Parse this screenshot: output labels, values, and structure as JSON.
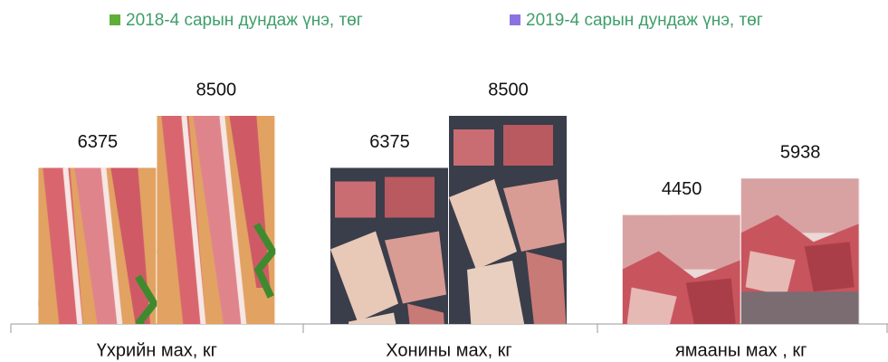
{
  "chart_data": {
    "type": "bar",
    "categories": [
      "Үхрийн мах, кг",
      "Хонины мах, кг",
      "ямааны мах , кг"
    ],
    "series": [
      {
        "name": "2018-4 сарын дундаж үнэ, төг",
        "color": "#5fae3a",
        "values": [
          6375,
          6375,
          4450
        ]
      },
      {
        "name": "2019-4 сарын дундаж үнэ, төг",
        "color": "#8c72e0",
        "values": [
          8500,
          8500,
          5938
        ]
      }
    ],
    "legend_text_color": "#3f9e6a",
    "legend": "top"
  }
}
